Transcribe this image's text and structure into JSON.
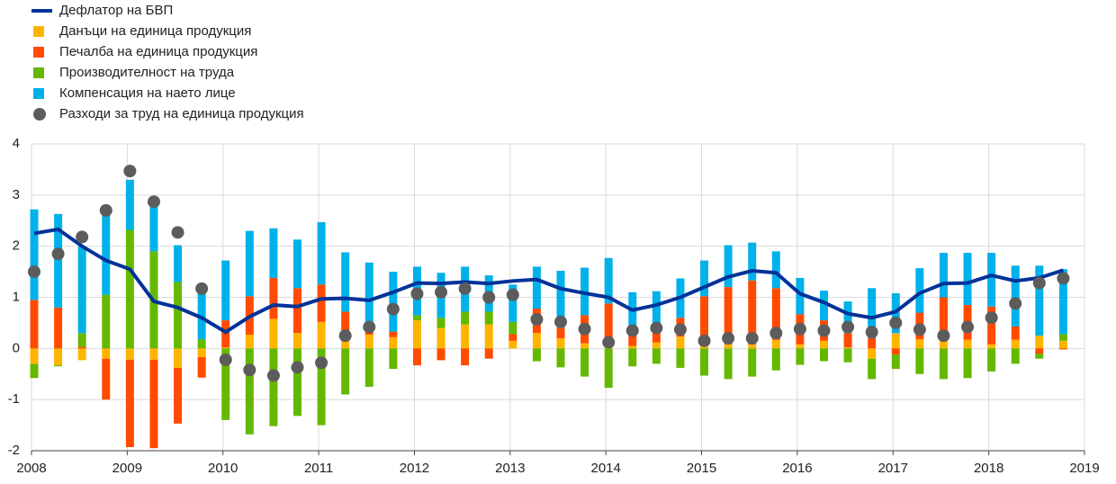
{
  "chart_data": {
    "type": "bar",
    "stacked": true,
    "grid": true,
    "x": [
      2008,
      2008.25,
      2008.5,
      2008.75,
      2009,
      2009.25,
      2009.5,
      2009.75,
      2010,
      2010.25,
      2010.5,
      2010.75,
      2011,
      2011.25,
      2011.5,
      2011.75,
      2012,
      2012.25,
      2012.5,
      2012.75,
      2013,
      2013.25,
      2013.5,
      2013.75,
      2014,
      2014.25,
      2014.5,
      2014.75,
      2015,
      2015.25,
      2015.5,
      2015.75,
      2016,
      2016.25,
      2016.5,
      2016.75,
      2017,
      2017.25,
      2017.5,
      2017.75,
      2018,
      2018.25,
      2018.5,
      2018.75
    ],
    "xlim": [
      2008,
      2019
    ],
    "xticks": [
      2008,
      2009,
      2010,
      2011,
      2012,
      2013,
      2014,
      2015,
      2016,
      2017,
      2018,
      2019
    ],
    "ylim": [
      -2,
      4
    ],
    "yticks": [
      -2,
      -1,
      0,
      1,
      2,
      3,
      4
    ],
    "series": [
      {
        "name": "Дефлатор на БВП",
        "type": "line",
        "color": "#003299",
        "values": [
          2.25,
          2.33,
          2.0,
          1.72,
          1.55,
          0.92,
          0.8,
          0.6,
          0.32,
          0.62,
          0.85,
          0.82,
          0.97,
          0.98,
          0.94,
          1.1,
          1.28,
          1.27,
          1.3,
          1.27,
          1.32,
          1.35,
          1.17,
          1.08,
          1.0,
          0.75,
          0.85,
          1.0,
          1.2,
          1.4,
          1.52,
          1.48,
          1.07,
          0.9,
          0.68,
          0.6,
          0.72,
          1.08,
          1.27,
          1.28,
          1.43,
          1.32,
          1.38,
          1.53
        ]
      },
      {
        "name": "Данъци на единица продукция",
        "type": "bar",
        "color": "#ffb400",
        "values": [
          -0.3,
          -0.33,
          -0.23,
          -0.2,
          -0.22,
          -0.22,
          -0.38,
          -0.17,
          0.02,
          0.27,
          0.58,
          0.3,
          0.52,
          0.15,
          0.27,
          0.22,
          0.55,
          0.4,
          0.47,
          0.47,
          0.15,
          0.3,
          0.2,
          0.1,
          0.05,
          0.05,
          0.12,
          0.23,
          0.08,
          0.08,
          0.08,
          0.17,
          0.08,
          0.15,
          0.02,
          -0.2,
          0.3,
          0.18,
          0.17,
          0.17,
          0.08,
          0.17,
          0.25,
          0.15
        ]
      },
      {
        "name": "Печалба на единица продукция",
        "type": "bar",
        "color": "#ff4b00",
        "values": [
          0.95,
          0.8,
          0.03,
          -0.8,
          -1.71,
          -1.73,
          -1.09,
          -0.4,
          0.53,
          0.75,
          0.8,
          0.88,
          0.73,
          0.57,
          0.1,
          0.11,
          -0.33,
          -0.23,
          -0.33,
          -0.2,
          0.13,
          0.48,
          0.2,
          0.55,
          0.83,
          0.33,
          0.3,
          0.37,
          0.94,
          1.12,
          1.25,
          1.01,
          0.59,
          0.4,
          0.28,
          0.2,
          -0.12,
          0.52,
          0.83,
          0.68,
          0.74,
          0.26,
          -0.1,
          -0.02
        ]
      },
      {
        "name": "Производителност на труда",
        "type": "bar",
        "color": "#65b800",
        "values": [
          -0.28,
          -0.02,
          0.27,
          1.05,
          2.32,
          1.9,
          1.3,
          0.18,
          -1.4,
          -1.68,
          -1.52,
          -1.32,
          -1.5,
          -0.9,
          -0.75,
          -0.4,
          0.1,
          0.2,
          0.25,
          0.25,
          0.24,
          -0.25,
          -0.37,
          -0.55,
          -0.77,
          -0.35,
          -0.3,
          -0.38,
          -0.53,
          -0.6,
          -0.55,
          -0.43,
          -0.32,
          -0.25,
          -0.27,
          -0.4,
          -0.28,
          -0.5,
          -0.6,
          -0.58,
          -0.45,
          -0.3,
          -0.1,
          0.13
        ]
      },
      {
        "name": "Компенсация на наето лице",
        "type": "bar",
        "color": "#00b1ea",
        "values": [
          1.77,
          1.83,
          1.7,
          1.67,
          0.98,
          0.9,
          0.72,
          0.99,
          1.17,
          1.28,
          0.97,
          0.95,
          1.22,
          1.16,
          1.31,
          1.17,
          0.95,
          0.88,
          0.88,
          0.71,
          0.73,
          0.82,
          1.12,
          0.93,
          0.89,
          0.72,
          0.7,
          0.77,
          0.7,
          0.82,
          0.74,
          0.72,
          0.71,
          0.58,
          0.62,
          0.98,
          0.78,
          0.87,
          0.87,
          1.02,
          1.05,
          1.19,
          1.37,
          1.27
        ]
      },
      {
        "name": "Разходи за труд на единица продукция",
        "type": "scatter",
        "color": "#5c5c5c",
        "values": [
          1.5,
          1.85,
          2.18,
          2.7,
          3.47,
          2.87,
          2.27,
          1.17,
          -0.22,
          -0.42,
          -0.53,
          -0.37,
          -0.28,
          0.25,
          0.42,
          0.77,
          1.07,
          1.1,
          1.17,
          1.0,
          1.05,
          0.57,
          0.52,
          0.38,
          0.12,
          0.35,
          0.4,
          0.37,
          0.15,
          0.2,
          0.2,
          0.3,
          0.38,
          0.35,
          0.42,
          0.32,
          0.5,
          0.37,
          0.25,
          0.42,
          0.6,
          0.88,
          1.28,
          1.37
        ]
      }
    ]
  }
}
